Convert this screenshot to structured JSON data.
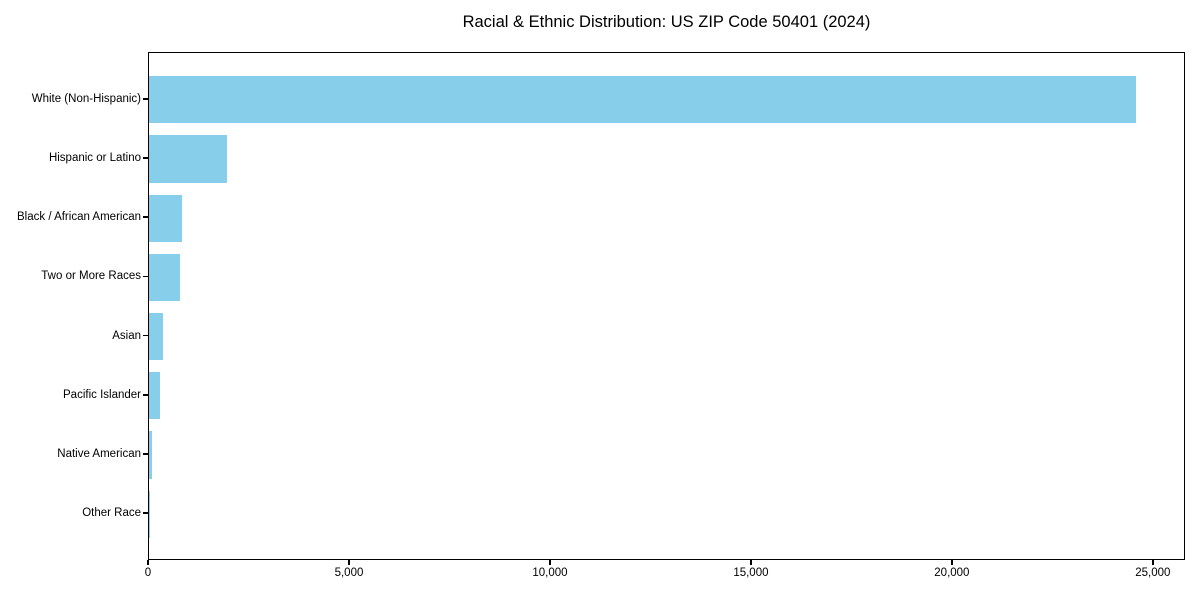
{
  "chart_data": {
    "type": "bar",
    "orientation": "horizontal",
    "title": "Racial & Ethnic Distribution: US ZIP Code 50401 (2024)",
    "categories": [
      "White (Non-Hispanic)",
      "Hispanic or Latino",
      "Black / African American",
      "Two or More Races",
      "Asian",
      "Pacific Islander",
      "Native American",
      "Other Race"
    ],
    "values": [
      24560,
      1930,
      810,
      760,
      345,
      280,
      70,
      10
    ],
    "xlabel": "",
    "ylabel": "",
    "xlim": [
      0,
      25800
    ],
    "xticks": [
      0,
      5000,
      10000,
      15000,
      20000,
      25000
    ],
    "xtick_labels": [
      "0",
      "5,000",
      "10,000",
      "15,000",
      "20,000",
      "25,000"
    ],
    "bar_color": "#87CEEB",
    "frame_color": "#000000",
    "grid": false,
    "legend": null
  }
}
